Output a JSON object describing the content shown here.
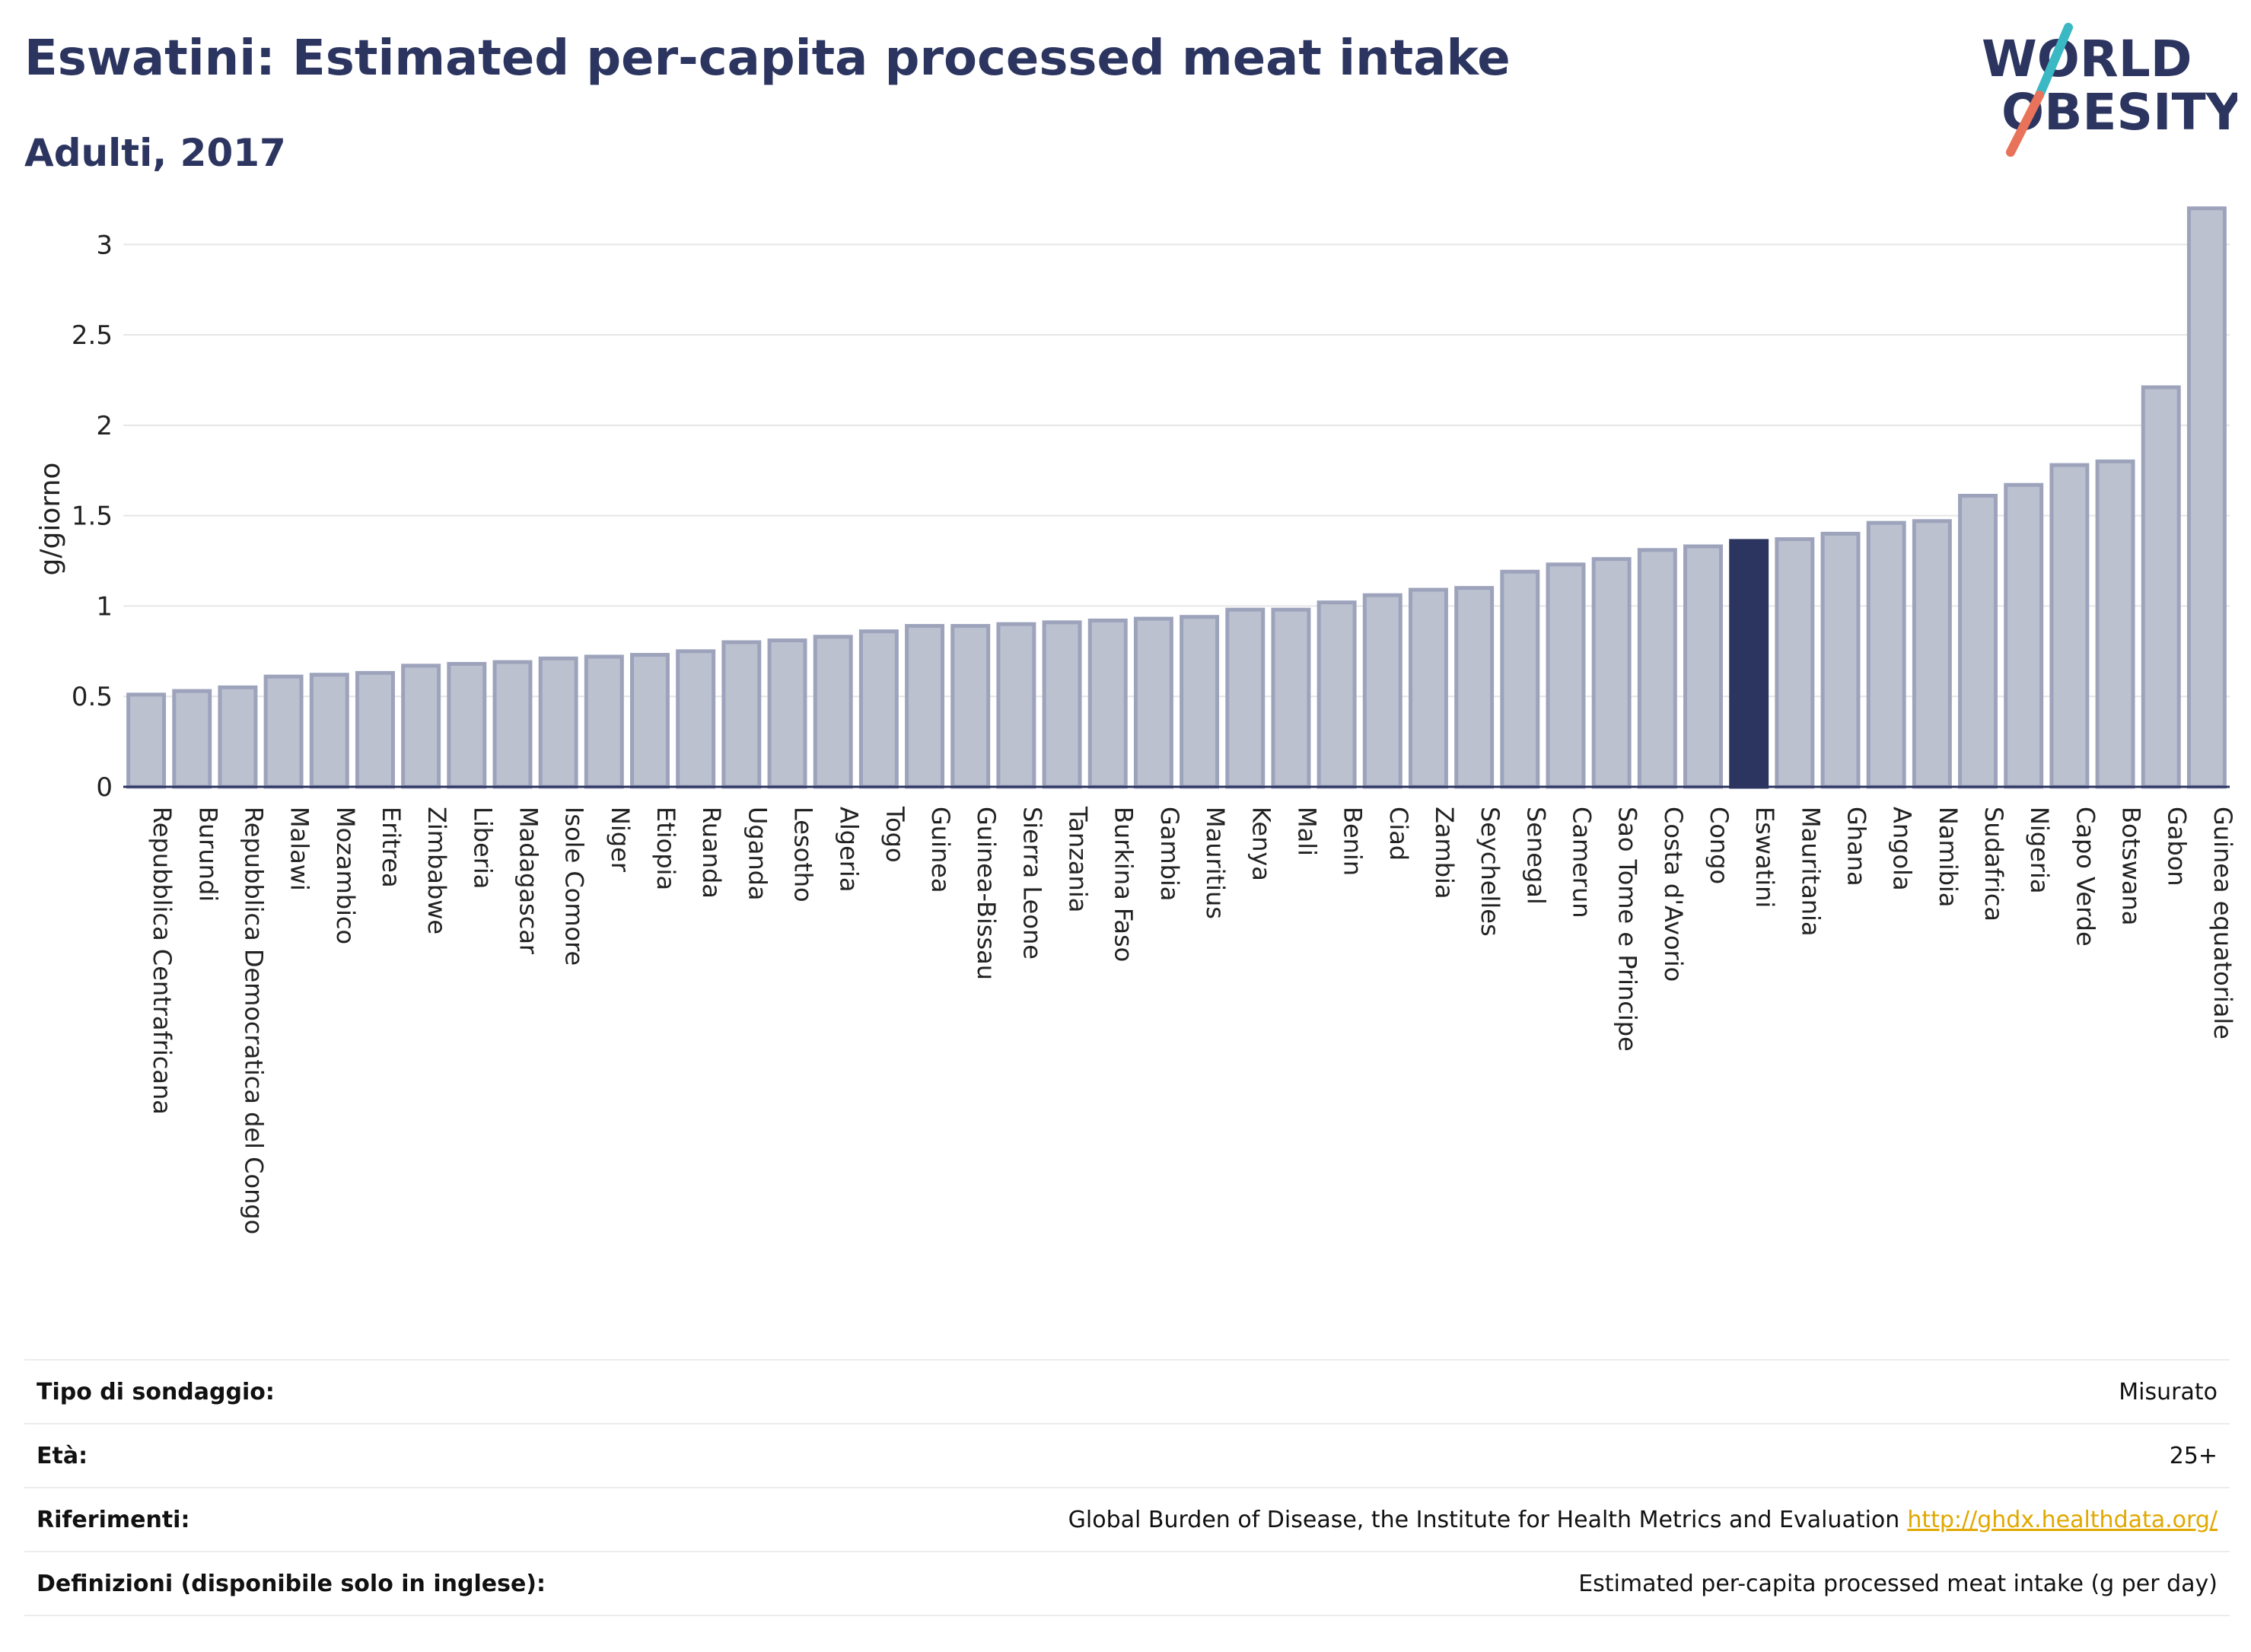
{
  "header": {
    "title": "Eswatini: Estimated per-capita processed meat intake",
    "subtitle": "Adulti, 2017"
  },
  "logo": {
    "line1": "WORLD",
    "line2": "OBESITY",
    "colors": {
      "text": "#2c3560",
      "slash_top": "#3ab8c4",
      "slash_bottom": "#e8735a"
    }
  },
  "colors": {
    "bar": "#bcc1d0",
    "bar_border": "#9ca3bb",
    "highlight": "#2c3560",
    "grid": "#e6e6e6",
    "baseline": "#2c3560",
    "link": "#e0a800"
  },
  "chart_data": {
    "type": "bar",
    "title": "Eswatini: Estimated per-capita processed meat intake",
    "subtitle": "Adulti, 2017",
    "xlabel": "",
    "ylabel": "g/giorno",
    "ylim": [
      0,
      3.3
    ],
    "yticks": [
      0,
      0.5,
      1,
      1.5,
      2,
      2.5,
      3
    ],
    "ytick_labels": [
      "0",
      "0.5",
      "1",
      "1.5",
      "2",
      "2.5",
      "3"
    ],
    "grid": true,
    "highlight": "Eswatini",
    "categories": [
      "Repubblica Centrafricana",
      "Burundi",
      "Repubblica Democratica del Congo",
      "Malawi",
      "Mozambico",
      "Eritrea",
      "Zimbabwe",
      "Liberia",
      "Madagascar",
      "Isole Comore",
      "Niger",
      "Etiopia",
      "Ruanda",
      "Uganda",
      "Lesotho",
      "Algeria",
      "Togo",
      "Guinea",
      "Guinea-Bissau",
      "Sierra Leone",
      "Tanzania",
      "Burkina Faso",
      "Gambia",
      "Mauritius",
      "Kenya",
      "Mali",
      "Benin",
      "Ciad",
      "Zambia",
      "Seychelles",
      "Senegal",
      "Camerun",
      "Sao Tome e Principe",
      "Costa d'Avorio",
      "Congo",
      "Eswatini",
      "Mauritania",
      "Ghana",
      "Angola",
      "Namibia",
      "Sudafrica",
      "Nigeria",
      "Capo Verde",
      "Botswana",
      "Gabon",
      "Guinea equatoriale"
    ],
    "values": [
      0.51,
      0.53,
      0.55,
      0.61,
      0.62,
      0.63,
      0.67,
      0.68,
      0.69,
      0.71,
      0.72,
      0.73,
      0.75,
      0.8,
      0.81,
      0.83,
      0.86,
      0.89,
      0.89,
      0.9,
      0.91,
      0.92,
      0.93,
      0.94,
      0.98,
      0.98,
      1.02,
      1.06,
      1.09,
      1.1,
      1.19,
      1.23,
      1.26,
      1.31,
      1.33,
      1.36,
      1.37,
      1.4,
      1.46,
      1.47,
      1.61,
      1.67,
      1.78,
      1.8,
      2.21,
      3.2
    ]
  },
  "info": {
    "rows": [
      {
        "label": "Tipo di sondaggio:",
        "value": "Misurato",
        "link": ""
      },
      {
        "label": "Età:",
        "value": "25+",
        "link": ""
      },
      {
        "label": "Riferimenti:",
        "value": "Global Burden of Disease, the Institute for Health Metrics and Evaluation",
        "link": "http://ghdx.healthdata.org/"
      },
      {
        "label": "Definizioni (disponibile solo in inglese):",
        "value": "Estimated per-capita processed meat intake (g per day)",
        "link": ""
      }
    ]
  }
}
